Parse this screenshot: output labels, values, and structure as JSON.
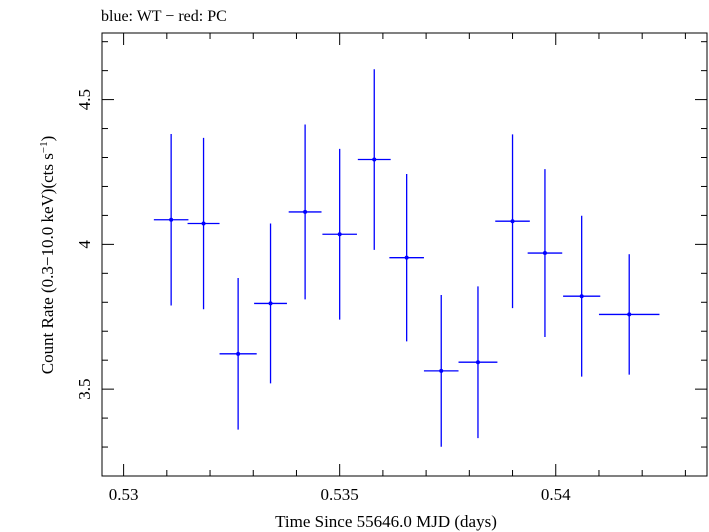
{
  "chart_data": {
    "type": "scatter",
    "title": "blue: WT − red: PC",
    "xlabel": "Time Since 55646.0 MJD (days)",
    "ylabel": "Count Rate (0.3−10.0 keV)(cts s",
    "ylabel_sup": "−1",
    "ylabel_close": ")",
    "xlim": [
      0.5295,
      0.5435
    ],
    "ylim": [
      3.2,
      4.73
    ],
    "xticks": [
      0.53,
      0.535,
      0.54
    ],
    "xtick_labels": [
      "0.53",
      "0.535",
      "0.54"
    ],
    "yticks": [
      3.5,
      4.0,
      4.5
    ],
    "ytick_labels": [
      "3.5",
      "4",
      "4.5"
    ],
    "x_minor_step": 0.001,
    "y_minor_step": 0.1,
    "grid": false,
    "series": [
      {
        "name": "WT",
        "color": "#0000ff",
        "points": [
          {
            "x": 0.5311,
            "y": 4.085,
            "xerr": 0.0004,
            "yerr": 0.296
          },
          {
            "x": 0.53185,
            "y": 4.072,
            "xerr": 0.00037,
            "yerr": 0.296
          },
          {
            "x": 0.53265,
            "y": 3.622,
            "xerr": 0.00043,
            "yerr": 0.262
          },
          {
            "x": 0.5334,
            "y": 3.796,
            "xerr": 0.00038,
            "yerr": 0.276
          },
          {
            "x": 0.5342,
            "y": 4.112,
            "xerr": 0.00038,
            "yerr": 0.302
          },
          {
            "x": 0.535,
            "y": 4.035,
            "xerr": 0.0004,
            "yerr": 0.295
          },
          {
            "x": 0.5358,
            "y": 4.293,
            "xerr": 0.00038,
            "yerr": 0.312
          },
          {
            "x": 0.53655,
            "y": 3.954,
            "xerr": 0.0004,
            "yerr": 0.289
          },
          {
            "x": 0.53735,
            "y": 3.563,
            "xerr": 0.0004,
            "yerr": 0.262
          },
          {
            "x": 0.5382,
            "y": 3.593,
            "xerr": 0.00045,
            "yerr": 0.262
          },
          {
            "x": 0.539,
            "y": 4.08,
            "xerr": 0.0004,
            "yerr": 0.3
          },
          {
            "x": 0.53975,
            "y": 3.97,
            "xerr": 0.0004,
            "yerr": 0.29
          },
          {
            "x": 0.5406,
            "y": 3.821,
            "xerr": 0.00043,
            "yerr": 0.278
          },
          {
            "x": 0.5417,
            "y": 3.758,
            "xerr": 0.0007,
            "yerr": 0.208
          }
        ]
      }
    ]
  }
}
